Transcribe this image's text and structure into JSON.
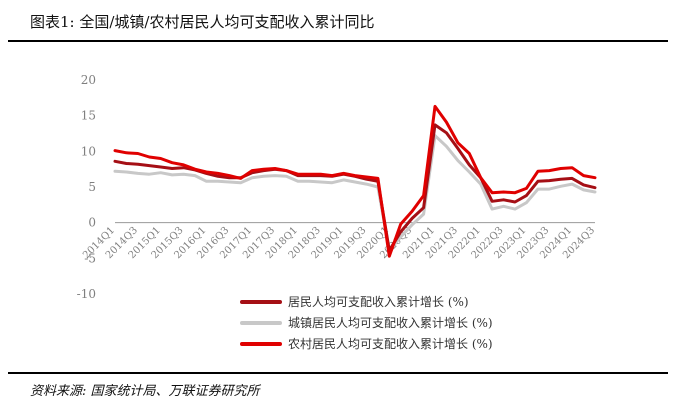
{
  "title": "图表1: 全国/城镇/农村居民人均可支配收入累计同比",
  "source": "资料来源: 国家统计局、万联证券研究所",
  "chart_data": {
    "type": "line",
    "ylim": [
      -10,
      20
    ],
    "yticks": [
      -10,
      -5,
      0,
      5,
      10,
      15,
      20
    ],
    "grid": false,
    "legend_position": "bottom-right",
    "categories": [
      "2014Q1",
      "2014Q2",
      "2014Q3",
      "2014Q4",
      "2015Q1",
      "2015Q2",
      "2015Q3",
      "2015Q4",
      "2016Q1",
      "2016Q2",
      "2016Q3",
      "2016Q4",
      "2017Q1",
      "2017Q2",
      "2017Q3",
      "2017Q4",
      "2018Q1",
      "2018Q2",
      "2018Q3",
      "2018Q4",
      "2019Q1",
      "2019Q2",
      "2019Q3",
      "2019Q4",
      "2020Q1",
      "2020Q2",
      "2020Q3",
      "2020Q4",
      "2021Q1",
      "2021Q2",
      "2021Q3",
      "2021Q4",
      "2022Q1",
      "2022Q2",
      "2022Q3",
      "2022Q4",
      "2023Q1",
      "2023Q2",
      "2023Q3",
      "2023Q4",
      "2024Q1",
      "2024Q2",
      "2024Q3"
    ],
    "xtick_labels": [
      "2014Q1",
      "2014Q3",
      "2015Q1",
      "2015Q3",
      "2016Q1",
      "2016Q3",
      "2017Q1",
      "2017Q3",
      "2018Q1",
      "2018Q3",
      "2019Q1",
      "2019Q3",
      "2020Q1",
      "2020Q3",
      "2021Q1",
      "2021Q3",
      "2022Q1",
      "2022Q3",
      "2023Q1",
      "2023Q3",
      "2024Q1",
      "2024Q3"
    ],
    "series": [
      {
        "name": "居民人均可支配收入累计增长 (%)",
        "color": "#a50f15",
        "width": 3,
        "values": [
          8.6,
          8.3,
          8.2,
          8.0,
          7.8,
          7.6,
          7.7,
          7.4,
          6.9,
          6.5,
          6.3,
          6.3,
          7.0,
          7.3,
          7.5,
          7.3,
          6.6,
          6.6,
          6.6,
          6.5,
          6.8,
          6.5,
          6.1,
          5.8,
          -3.9,
          -1.3,
          0.6,
          2.1,
          13.7,
          12.6,
          10.4,
          8.1,
          6.3,
          3.0,
          3.2,
          2.9,
          3.8,
          5.8,
          5.9,
          6.1,
          6.2,
          5.3,
          4.9
        ]
      },
      {
        "name": "城镇居民人均可支配收入累计增长 (%)",
        "color": "#c8c8c8",
        "width": 3,
        "values": [
          7.2,
          7.1,
          6.9,
          6.8,
          7.0,
          6.7,
          6.8,
          6.6,
          5.8,
          5.8,
          5.7,
          5.6,
          6.3,
          6.5,
          6.6,
          6.5,
          5.8,
          5.8,
          5.7,
          5.6,
          6.0,
          5.7,
          5.4,
          5.0,
          -3.9,
          -2.0,
          -0.3,
          1.2,
          12.2,
          10.7,
          8.7,
          7.1,
          5.4,
          1.9,
          2.3,
          1.9,
          2.8,
          4.7,
          4.7,
          5.1,
          5.4,
          4.6,
          4.3
        ]
      },
      {
        "name": "农村居民人均可支配收入累计增长 (%)",
        "color": "#e00000",
        "width": 3,
        "values": [
          10.1,
          9.8,
          9.7,
          9.2,
          9.0,
          8.4,
          8.1,
          7.5,
          7.1,
          6.9,
          6.6,
          6.2,
          7.3,
          7.5,
          7.6,
          7.3,
          6.8,
          6.8,
          6.8,
          6.6,
          6.9,
          6.6,
          6.4,
          6.2,
          -4.7,
          -0.2,
          1.6,
          3.8,
          16.3,
          14.1,
          11.2,
          9.7,
          6.3,
          4.2,
          4.3,
          4.2,
          4.8,
          7.2,
          7.3,
          7.6,
          7.7,
          6.6,
          6.3
        ]
      }
    ]
  }
}
